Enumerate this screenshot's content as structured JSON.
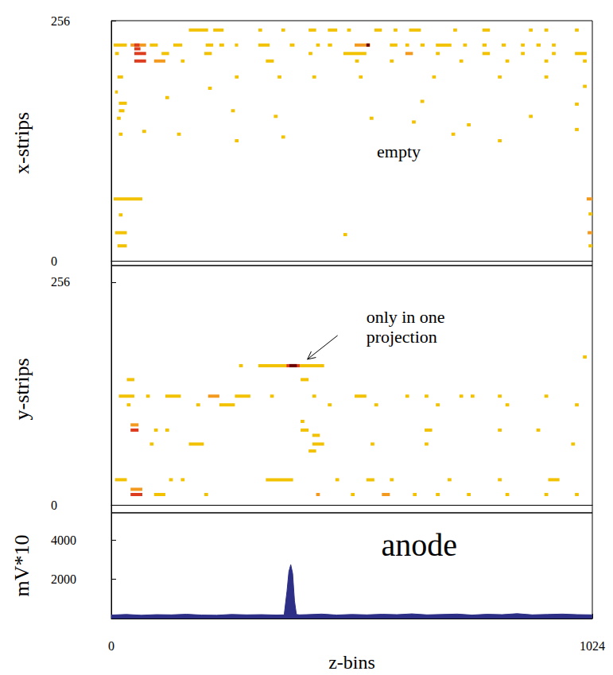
{
  "chart_data": [
    {
      "type": "heatmap",
      "ylabel": "x-strips",
      "xlim": [
        0,
        1024
      ],
      "ylim": [
        -5,
        256
      ],
      "yticks": [
        0,
        256
      ],
      "colors": [
        "#f2c200",
        "#f39a1e",
        "#dd3c1e",
        "#6b0000"
      ],
      "cells": [
        [
          5,
          33,
          230,
          1
        ],
        [
          41,
          74,
          230,
          2
        ],
        [
          49,
          60,
          230,
          3
        ],
        [
          49,
          62,
          226,
          3
        ],
        [
          82,
          99,
          230,
          1
        ],
        [
          132,
          151,
          230,
          1
        ],
        [
          201,
          217,
          230,
          1
        ],
        [
          230,
          240,
          230,
          1
        ],
        [
          263,
          270,
          230,
          1
        ],
        [
          313,
          337,
          230,
          1
        ],
        [
          380,
          390,
          230,
          1
        ],
        [
          436,
          444,
          230,
          1
        ],
        [
          461,
          470,
          230,
          1
        ],
        [
          518,
          551,
          230,
          2
        ],
        [
          543,
          550,
          230,
          4
        ],
        [
          593,
          609,
          230,
          1
        ],
        [
          626,
          634,
          230,
          1
        ],
        [
          658,
          667,
          230,
          1
        ],
        [
          691,
          724,
          230,
          1
        ],
        [
          749,
          757,
          230,
          1
        ],
        [
          790,
          799,
          230,
          1
        ],
        [
          831,
          840,
          230,
          1
        ],
        [
          872,
          880,
          230,
          1
        ],
        [
          905,
          914,
          230,
          1
        ],
        [
          938,
          946,
          230,
          1
        ],
        [
          165,
          206,
          246,
          1
        ],
        [
          217,
          239,
          246,
          1
        ],
        [
          313,
          321,
          246,
          1
        ],
        [
          362,
          370,
          246,
          1
        ],
        [
          420,
          436,
          246,
          1
        ],
        [
          461,
          481,
          246,
          1
        ],
        [
          502,
          510,
          246,
          1
        ],
        [
          560,
          576,
          246,
          1
        ],
        [
          601,
          609,
          246,
          1
        ],
        [
          634,
          659,
          246,
          1
        ],
        [
          728,
          736,
          246,
          1
        ],
        [
          790,
          806,
          246,
          1
        ],
        [
          889,
          897,
          246,
          1
        ],
        [
          922,
          930,
          246,
          1
        ],
        [
          987,
          995,
          246,
          1
        ],
        [
          8,
          16,
          221,
          1
        ],
        [
          49,
          74,
          221,
          3
        ],
        [
          107,
          123,
          221,
          1
        ],
        [
          198,
          214,
          221,
          1
        ],
        [
          420,
          428,
          221,
          1
        ],
        [
          494,
          543,
          221,
          1
        ],
        [
          626,
          642,
          221,
          2
        ],
        [
          691,
          699,
          221,
          1
        ],
        [
          790,
          806,
          221,
          1
        ],
        [
          872,
          880,
          221,
          1
        ],
        [
          938,
          946,
          221,
          1
        ],
        [
          987,
          1012,
          221,
          1
        ],
        [
          49,
          74,
          213,
          3
        ],
        [
          91,
          115,
          213,
          2
        ],
        [
          148,
          156,
          213,
          1
        ],
        [
          329,
          346,
          213,
          1
        ],
        [
          519,
          527,
          213,
          1
        ],
        [
          593,
          601,
          213,
          1
        ],
        [
          741,
          749,
          213,
          1
        ],
        [
          839,
          847,
          213,
          1
        ],
        [
          922,
          930,
          213,
          1
        ],
        [
          1004,
          1012,
          213,
          1
        ],
        [
          13,
          25,
          196,
          1
        ],
        [
          263,
          271,
          196,
          1
        ],
        [
          354,
          362,
          196,
          1
        ],
        [
          428,
          436,
          196,
          1
        ],
        [
          527,
          535,
          196,
          1
        ],
        [
          683,
          691,
          196,
          1
        ],
        [
          823,
          831,
          196,
          1
        ],
        [
          922,
          930,
          196,
          1
        ],
        [
          8,
          14,
          180,
          1
        ],
        [
          16,
          33,
          168,
          1
        ],
        [
          16,
          28,
          160,
          1
        ],
        [
          115,
          123,
          174,
          1
        ],
        [
          206,
          214,
          184,
          1
        ],
        [
          346,
          354,
          154,
          1
        ],
        [
          658,
          666,
          170,
          1
        ],
        [
          757,
          765,
          145,
          1
        ],
        [
          889,
          897,
          154,
          1
        ],
        [
          987,
          995,
          167,
          1
        ],
        [
          1004,
          1012,
          186,
          1
        ],
        [
          12,
          20,
          152,
          1
        ],
        [
          255,
          263,
          160,
          1
        ],
        [
          550,
          558,
          152,
          1
        ],
        [
          640,
          648,
          148,
          1
        ],
        [
          16,
          24,
          135,
          1
        ],
        [
          66,
          74,
          138,
          1
        ],
        [
          140,
          148,
          135,
          1
        ],
        [
          263,
          271,
          128,
          1
        ],
        [
          362,
          370,
          132,
          1
        ],
        [
          724,
          732,
          135,
          1
        ],
        [
          823,
          831,
          128,
          1
        ],
        [
          987,
          995,
          140,
          1
        ],
        [
          5,
          66,
          66,
          1
        ],
        [
          1012,
          1024,
          66,
          2
        ],
        [
          16,
          24,
          49,
          1
        ],
        [
          1016,
          1024,
          50,
          1
        ],
        [
          8,
          33,
          30,
          1
        ],
        [
          494,
          502,
          28,
          1
        ],
        [
          1014,
          1024,
          30,
          2
        ],
        [
          13,
          33,
          16,
          1
        ],
        [
          1016,
          1024,
          16,
          1
        ]
      ],
      "annotations": [
        {
          "text": "empty",
          "xy": [
            612,
            117
          ]
        }
      ]
    },
    {
      "type": "heatmap",
      "ylabel": "y-strips",
      "xlim": [
        0,
        1024
      ],
      "ylim": [
        -9,
        275
      ],
      "yticks": [
        0,
        256
      ],
      "colors": [
        "#f2c200",
        "#f39a1e",
        "#dd3c1e",
        "#6b0000"
      ],
      "cells": [
        [
          313,
          453,
          160,
          1
        ],
        [
          373,
          401,
          160,
          3
        ],
        [
          379,
          395,
          160,
          4
        ],
        [
          272,
          280,
          160,
          1
        ],
        [
          16,
          49,
          125,
          1
        ],
        [
          74,
          82,
          125,
          1
        ],
        [
          115,
          148,
          125,
          1
        ],
        [
          206,
          230,
          125,
          2
        ],
        [
          263,
          296,
          125,
          1
        ],
        [
          338,
          346,
          125,
          1
        ],
        [
          428,
          436,
          125,
          1
        ],
        [
          518,
          543,
          125,
          1
        ],
        [
          626,
          634,
          125,
          1
        ],
        [
          667,
          675,
          125,
          1
        ],
        [
          741,
          749,
          125,
          1
        ],
        [
          765,
          773,
          125,
          1
        ],
        [
          823,
          831,
          125,
          1
        ],
        [
          922,
          930,
          125,
          1
        ],
        [
          33,
          41,
          115,
          1
        ],
        [
          181,
          189,
          115,
          1
        ],
        [
          230,
          263,
          115,
          1
        ],
        [
          461,
          469,
          115,
          1
        ],
        [
          560,
          568,
          115,
          1
        ],
        [
          691,
          699,
          115,
          1
        ],
        [
          839,
          847,
          115,
          1
        ],
        [
          987,
          995,
          115,
          1
        ],
        [
          41,
          58,
          86,
          3
        ],
        [
          41,
          58,
          92,
          2
        ],
        [
          91,
          99,
          86,
          1
        ],
        [
          115,
          123,
          86,
          1
        ],
        [
          403,
          420,
          86,
          1
        ],
        [
          428,
          444,
          80,
          1
        ],
        [
          667,
          683,
          86,
          1
        ],
        [
          823,
          831,
          86,
          1
        ],
        [
          905,
          913,
          86,
          1
        ],
        [
          403,
          411,
          96,
          1
        ],
        [
          82,
          90,
          70,
          1
        ],
        [
          165,
          197,
          70,
          1
        ],
        [
          428,
          453,
          70,
          1
        ],
        [
          552,
          560,
          70,
          1
        ],
        [
          667,
          675,
          70,
          1
        ],
        [
          979,
          987,
          70,
          1
        ],
        [
          420,
          436,
          62,
          1
        ],
        [
          8,
          33,
          29,
          1
        ],
        [
          123,
          131,
          29,
          1
        ],
        [
          148,
          156,
          29,
          1
        ],
        [
          329,
          387,
          29,
          1
        ],
        [
          477,
          485,
          29,
          1
        ],
        [
          543,
          560,
          29,
          1
        ],
        [
          593,
          601,
          29,
          1
        ],
        [
          716,
          724,
          29,
          1
        ],
        [
          823,
          831,
          29,
          1
        ],
        [
          930,
          954,
          29,
          1
        ],
        [
          41,
          66,
          12,
          3
        ],
        [
          41,
          66,
          18,
          2
        ],
        [
          91,
          115,
          12,
          1
        ],
        [
          198,
          206,
          12,
          1
        ],
        [
          436,
          444,
          12,
          2
        ],
        [
          510,
          518,
          12,
          1
        ],
        [
          576,
          593,
          12,
          2
        ],
        [
          642,
          650,
          12,
          1
        ],
        [
          691,
          699,
          12,
          1
        ],
        [
          757,
          765,
          12,
          1
        ],
        [
          839,
          847,
          12,
          1
        ],
        [
          922,
          930,
          12,
          1
        ],
        [
          987,
          995,
          12,
          1
        ],
        [
          33,
          49,
          144,
          1
        ],
        [
          403,
          420,
          144,
          1
        ],
        [
          1004,
          1012,
          170,
          1
        ]
      ],
      "annotations": [
        {
          "text": "only in one projection",
          "xy": [
            387,
            160
          ]
        }
      ]
    },
    {
      "type": "area",
      "title": "anode",
      "ylabel": "mV*10",
      "xlabel": "z-bins",
      "xlim": [
        0,
        1024
      ],
      "xticks": [
        0,
        1024
      ],
      "ylim": [
        0,
        5400
      ],
      "yticks": [
        2000,
        4000
      ],
      "color": "#2d2f87",
      "x": [
        0,
        32,
        64,
        96,
        128,
        160,
        192,
        224,
        256,
        288,
        320,
        352,
        368,
        374,
        378,
        382,
        386,
        390,
        394,
        400,
        416,
        448,
        480,
        512,
        544,
        576,
        608,
        640,
        672,
        704,
        736,
        768,
        800,
        832,
        864,
        896,
        928,
        960,
        992,
        1024
      ],
      "values": [
        180,
        210,
        170,
        200,
        190,
        220,
        180,
        170,
        210,
        190,
        200,
        180,
        190,
        1400,
        2400,
        2750,
        2300,
        900,
        210,
        190,
        200,
        230,
        180,
        210,
        190,
        220,
        200,
        240,
        190,
        210,
        230,
        180,
        220,
        200,
        250,
        190,
        210,
        230,
        200,
        190
      ]
    }
  ]
}
